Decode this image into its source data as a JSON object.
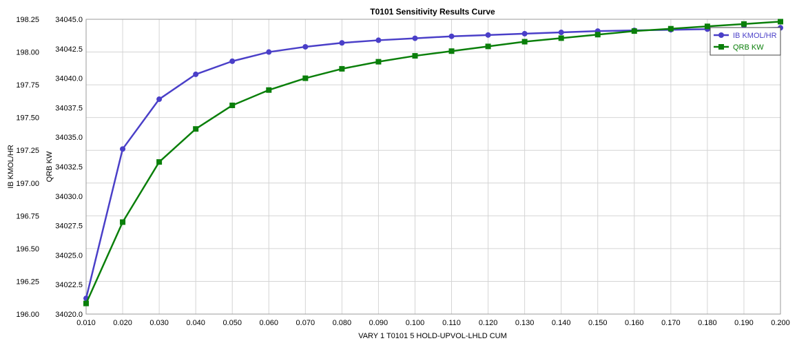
{
  "chart_data": {
    "type": "line",
    "title": "T0101 Sensitivity Results Curve",
    "xlabel": "VARY  1 T0101 5 HOLD-UPVOL-LHLD CUM",
    "x": [
      0.01,
      0.02,
      0.03,
      0.04,
      0.05,
      0.06,
      0.07,
      0.08,
      0.09,
      0.1,
      0.11,
      0.12,
      0.13,
      0.14,
      0.15,
      0.16,
      0.17,
      0.18,
      0.19,
      0.2
    ],
    "x_tick_labels": [
      "0.010",
      "0.020",
      "0.030",
      "0.040",
      "0.050",
      "0.060",
      "0.070",
      "0.080",
      "0.090",
      "0.100",
      "0.110",
      "0.120",
      "0.130",
      "0.140",
      "0.150",
      "0.160",
      "0.170",
      "0.180",
      "0.190",
      "0.200"
    ],
    "xlim": [
      0.01,
      0.2
    ],
    "grid": true,
    "legend_position": "top-right",
    "y_axes": [
      {
        "id": "left",
        "label": "IB KMOL/HR",
        "ylim": [
          196.0,
          198.25
        ],
        "tick_values": [
          196.0,
          196.25,
          196.5,
          196.75,
          197.0,
          197.25,
          197.5,
          197.75,
          198.0,
          198.25
        ],
        "tick_labels": [
          "196.00",
          "196.25",
          "196.50",
          "196.75",
          "197.00",
          "197.25",
          "197.50",
          "197.75",
          "198.00",
          "198.25"
        ]
      },
      {
        "id": "inner",
        "label": "QRB KW",
        "ylim": [
          34020.0,
          34045.0
        ],
        "tick_values": [
          34020.0,
          34022.5,
          34025.0,
          34027.5,
          34030.0,
          34032.5,
          34035.0,
          34037.5,
          34040.0,
          34042.5,
          34045.0
        ],
        "tick_labels": [
          "34020.0",
          "34022.5",
          "34025.0",
          "34027.5",
          "34030.0",
          "34032.5",
          "34035.0",
          "34037.5",
          "34040.0",
          "34042.5",
          "34045.0"
        ]
      }
    ],
    "series": [
      {
        "name": "IB KMOL/HR",
        "axis": "left",
        "marker": "circle",
        "color": "#4a3fc8",
        "values": [
          196.12,
          197.26,
          197.64,
          197.83,
          197.93,
          198.0,
          198.04,
          198.07,
          198.09,
          198.105,
          198.12,
          198.13,
          198.14,
          198.15,
          198.16,
          198.165,
          198.17,
          198.175,
          198.18,
          198.185
        ]
      },
      {
        "name": "QRB KW",
        "axis": "inner",
        "marker": "square",
        "color": "#0a7f0a",
        "values": [
          34020.9,
          34027.8,
          34032.9,
          34035.7,
          34037.7,
          34039.0,
          34040.0,
          34040.8,
          34041.4,
          34041.9,
          34042.3,
          34042.7,
          34043.1,
          34043.4,
          34043.7,
          34044.0,
          34044.2,
          34044.4,
          34044.6,
          34044.8
        ]
      }
    ]
  }
}
